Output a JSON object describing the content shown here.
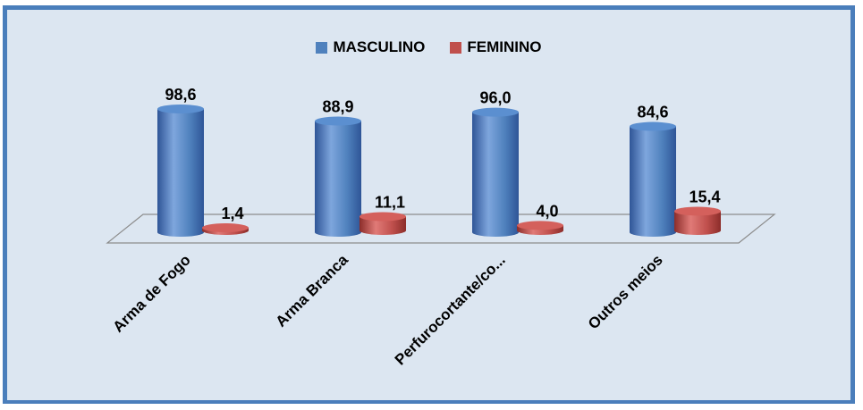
{
  "chart_data": {
    "type": "bar",
    "categories": [
      "Arma de Fogo",
      "Arma Branca",
      "Perfurocortante/co...",
      "Outros meios"
    ],
    "series": [
      {
        "name": "MASCULINO",
        "values": [
          98.6,
          88.9,
          96.0,
          84.6
        ],
        "labels": [
          "98,6",
          "88,9",
          "96,0",
          "84,6"
        ],
        "color": "#4f81bd"
      },
      {
        "name": "FEMININO",
        "values": [
          1.4,
          11.1,
          4.0,
          15.4
        ],
        "labels": [
          "1,4",
          "11,1",
          "4,0",
          "15,4"
        ],
        "color": "#c0504d"
      }
    ],
    "ylim": [
      0,
      100
    ],
    "grid": false,
    "legend": "top-center",
    "background": "#dce6f1",
    "border_color": "#4a7ebb"
  }
}
